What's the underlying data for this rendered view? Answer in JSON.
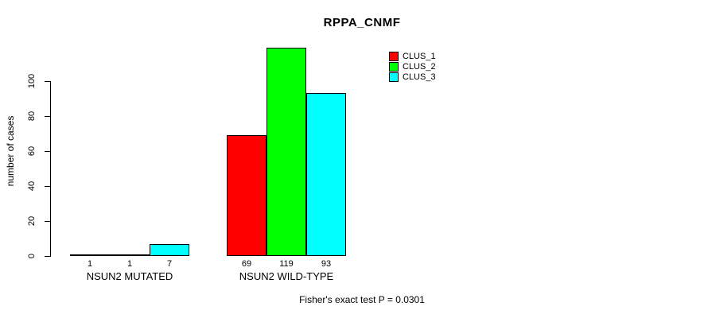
{
  "chart_data": {
    "type": "bar",
    "title": "RPPA_CNMF",
    "ylabel": "number of cases",
    "xlabel": "",
    "categories": [
      "NSUN2 MUTATED",
      "NSUN2 WILD-TYPE"
    ],
    "series": [
      {
        "name": "CLUS_1",
        "color": "#ff0000",
        "values": [
          1,
          69
        ]
      },
      {
        "name": "CLUS_2",
        "color": "#00ff00",
        "values": [
          1,
          119
        ]
      },
      {
        "name": "CLUS_3",
        "color": "#00ffff",
        "values": [
          7,
          93
        ]
      }
    ],
    "bar_value_labels": [
      [
        "1",
        "1",
        "7"
      ],
      [
        "69",
        "119",
        "93"
      ]
    ],
    "yticks": [
      0,
      20,
      40,
      60,
      80,
      100
    ],
    "ylim": [
      0,
      120
    ],
    "grid": false,
    "legend_position": "top-right",
    "bar_border_color": "#000000",
    "footnote": "Fisher's exact test P = 0.0301"
  }
}
